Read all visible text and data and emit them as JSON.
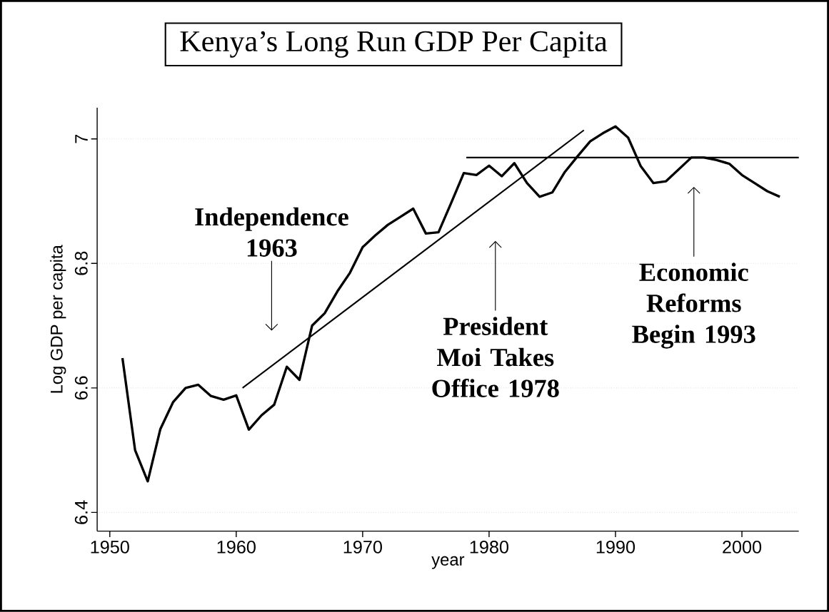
{
  "chart_data": {
    "type": "line",
    "title": "Kenya’s Long Run GDP Per Capita",
    "xlabel": "year",
    "ylabel": "Log GDP per capita",
    "x": [
      1951,
      1952,
      1953,
      1954,
      1955,
      1956,
      1957,
      1958,
      1959,
      1960,
      1961,
      1962,
      1963,
      1964,
      1965,
      1966,
      1967,
      1968,
      1969,
      1970,
      1971,
      1972,
      1973,
      1974,
      1975,
      1976,
      1977,
      1978,
      1979,
      1980,
      1981,
      1982,
      1983,
      1984,
      1985,
      1986,
      1987,
      1988,
      1989,
      1990,
      1991,
      1992,
      1993,
      1994,
      1995,
      1996,
      1997,
      1998,
      1999,
      2000,
      2001,
      2002,
      2003
    ],
    "series": [
      {
        "color": "#000000",
        "values": [
          6.648,
          6.5,
          6.45,
          6.534,
          6.577,
          6.6,
          6.605,
          6.587,
          6.581,
          6.588,
          6.533,
          6.556,
          6.573,
          6.634,
          6.613,
          6.7,
          6.72,
          6.755,
          6.785,
          6.826,
          6.845,
          6.862,
          6.875,
          6.888,
          6.848,
          6.85,
          6.897,
          6.945,
          6.942,
          6.957,
          6.94,
          6.961,
          6.929,
          6.907,
          6.914,
          6.947,
          6.972,
          6.996,
          7.009,
          7.02,
          7.002,
          6.956,
          6.929,
          6.932,
          6.951,
          6.97,
          6.97,
          6.966,
          6.96,
          6.942,
          6.929,
          6.916,
          6.907
        ]
      },
      {
        "type": "line",
        "color": "#000000",
        "x": [
          1960.5,
          1987.5
        ],
        "values": [
          6.6,
          7.014
        ]
      },
      {
        "type": "line",
        "color": "#000000",
        "x": [
          1978.2,
          2004.5
        ],
        "values": [
          6.97,
          6.97
        ]
      }
    ],
    "xlim": [
      1949,
      2004.5
    ],
    "ylim": [
      6.37,
      7.05
    ],
    "xticks": [
      1950,
      1960,
      1970,
      1980,
      1990,
      2000
    ],
    "yticks": [
      6.4,
      6.6,
      6.8,
      7
    ],
    "grid": "y",
    "annotations": [
      "Independence 1963",
      "President Moi Takes Office 1978",
      "Economic Reforms Begin 1993"
    ]
  }
}
